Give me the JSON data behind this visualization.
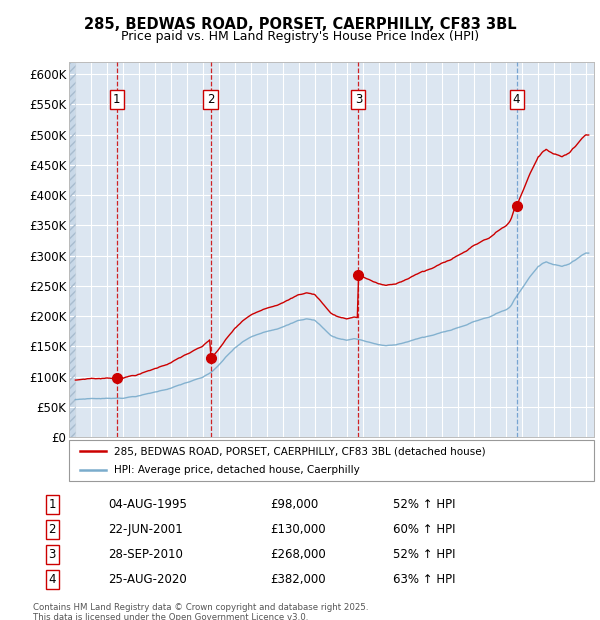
{
  "title1": "285, BEDWAS ROAD, PORSET, CAERPHILLY, CF83 3BL",
  "title2": "Price paid vs. HM Land Registry's House Price Index (HPI)",
  "footer": "Contains HM Land Registry data © Crown copyright and database right 2025.\nThis data is licensed under the Open Government Licence v3.0.",
  "legend_line1": "285, BEDWAS ROAD, PORSET, CAERPHILLY, CF83 3BL (detached house)",
  "legend_line2": "HPI: Average price, detached house, Caerphilly",
  "sale_labels": [
    "1",
    "2",
    "3",
    "4"
  ],
  "sale_dates_num": [
    1995.59,
    2001.47,
    2010.74,
    2020.65
  ],
  "sale_vline_colors": [
    "#cc0000",
    "#cc0000",
    "#cc0000",
    "#6699cc"
  ],
  "sale_vline_styles": [
    "--",
    "--",
    "--",
    "--"
  ],
  "sale_prices": [
    98000,
    130000,
    268000,
    382000
  ],
  "red_color": "#cc0000",
  "blue_color": "#7aaccc",
  "bg_color": "#dce6f1",
  "grid_color": "#ffffff",
  "ylim": [
    0,
    620000
  ],
  "yticks": [
    0,
    50000,
    100000,
    150000,
    200000,
    250000,
    300000,
    350000,
    400000,
    450000,
    500000,
    550000,
    600000
  ],
  "ytick_labels": [
    "£0",
    "£50K",
    "£100K",
    "£150K",
    "£200K",
    "£250K",
    "£300K",
    "£350K",
    "£400K",
    "£450K",
    "£500K",
    "£550K",
    "£600K"
  ],
  "xlim_start": 1992.6,
  "xlim_end": 2025.5,
  "xticks": [
    1993,
    1994,
    1995,
    1996,
    1997,
    1998,
    1999,
    2000,
    2001,
    2002,
    2003,
    2004,
    2005,
    2006,
    2007,
    2008,
    2009,
    2010,
    2011,
    2012,
    2013,
    2014,
    2015,
    2016,
    2017,
    2018,
    2019,
    2020,
    2021,
    2022,
    2023,
    2024,
    2025
  ]
}
